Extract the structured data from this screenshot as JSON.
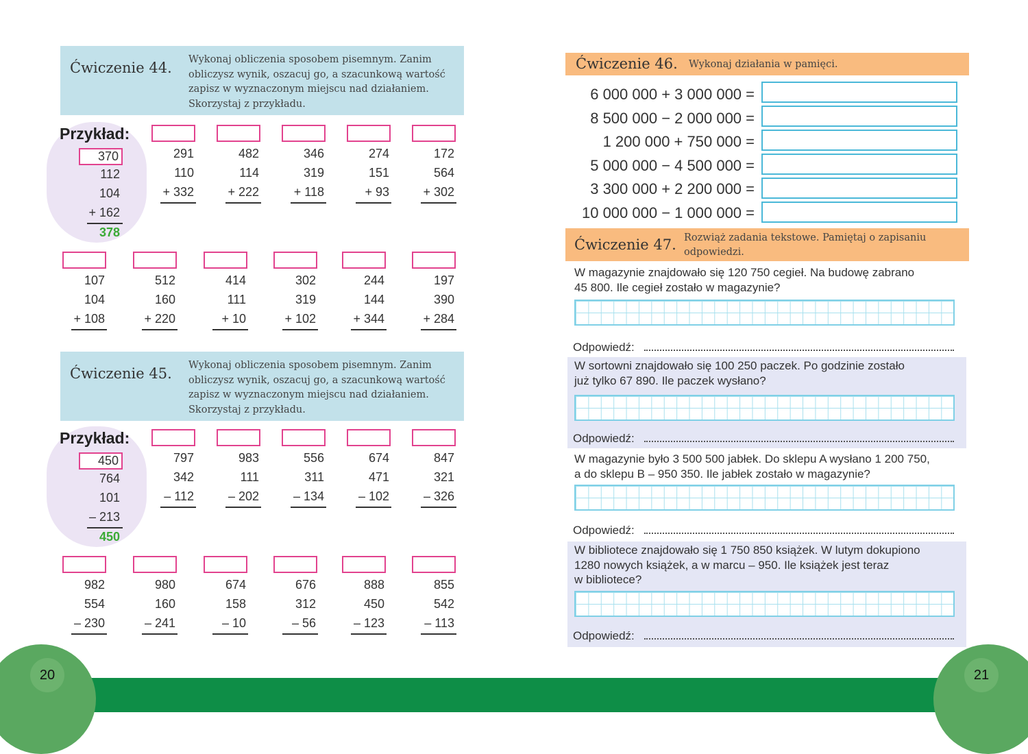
{
  "left_page": {
    "page_number": "20",
    "ex44": {
      "title": "Ćwiczenie 44.",
      "instruction": [
        "Wykonaj obliczenia sposobem pisemnym. Zanim",
        "obliczysz wynik, oszacuj go, a szacunkową wartość",
        "zapisz w wyznaczonym miejscu nad działaniem.",
        "Skorzystaj z przykładu."
      ],
      "example_label": "Przykład:",
      "example": {
        "estimate": "370",
        "rows": [
          "112",
          "104",
          "+ 162"
        ],
        "result": "378"
      },
      "row1": [
        [
          "291",
          "110",
          "+ 332"
        ],
        [
          "482",
          "114",
          "+ 222"
        ],
        [
          "346",
          "319",
          "+ 118"
        ],
        [
          "274",
          "151",
          "+ 93"
        ],
        [
          "172",
          "564",
          "+ 302"
        ]
      ],
      "row2": [
        [
          "107",
          "104",
          "+ 108"
        ],
        [
          "512",
          "160",
          "+ 220"
        ],
        [
          "414",
          "111",
          "+ 10"
        ],
        [
          "302",
          "319",
          "+ 102"
        ],
        [
          "244",
          "144",
          "+ 344"
        ],
        [
          "197",
          "390",
          "+ 284"
        ]
      ]
    },
    "ex45": {
      "title": "Ćwiczenie 45.",
      "instruction": [
        "Wykonaj obliczenia sposobem pisemnym. Zanim",
        "obliczysz wynik, oszacuj go, a szacunkową wartość",
        "zapisz w wyznaczonym miejscu nad działaniem.",
        "Skorzystaj z przykładu."
      ],
      "example_label": "Przykład:",
      "example": {
        "estimate": "450",
        "rows": [
          "764",
          "101",
          "– 213"
        ],
        "result": "450"
      },
      "row1": [
        [
          "797",
          "342",
          "– 112"
        ],
        [
          "983",
          "111",
          "– 202"
        ],
        [
          "556",
          "311",
          "– 134"
        ],
        [
          "674",
          "471",
          "– 102"
        ],
        [
          "847",
          "321",
          "– 326"
        ]
      ],
      "row2": [
        [
          "982",
          "554",
          "– 230"
        ],
        [
          "980",
          "160",
          "– 241"
        ],
        [
          "674",
          "158",
          "– 10"
        ],
        [
          "676",
          "312",
          "– 56"
        ],
        [
          "888",
          "450",
          "– 123"
        ],
        [
          "855",
          "542",
          "– 113"
        ]
      ]
    }
  },
  "right_page": {
    "page_number": "21",
    "ex46": {
      "title": "Ćwiczenie 46.",
      "instruction": "Wykonaj działania w pamięci.",
      "equations": [
        "6 000 000 + 3 000 000 =",
        "8 500 000 − 2 000 000 =",
        "1 200 000 + 750 000 =",
        "5 000 000 − 4 500 000 =",
        "3 300 000 + 2 200 000 =",
        "10 000 000 − 1 000 000 ="
      ]
    },
    "ex47": {
      "title": "Ćwiczenie 47.",
      "instruction": [
        "Rozwiąż zadania tekstowe. Pamiętaj o zapisaniu",
        "odpowiedzi."
      ],
      "answer_label": "Odpowiedź:",
      "problems": [
        {
          "lines": [
            "W magazynie znajdowało się 120 750 cegieł. Na budowę zabrano",
            "45 800. Ile cegieł zostało w magazynie?"
          ]
        },
        {
          "lines": [
            "W sortowni znajdowało się 100 250 paczek. Po godzinie zostało",
            " już tylko 67 890. Ile paczek wysłano?"
          ]
        },
        {
          "lines": [
            "W magazynie było 3 500 500 jabłek. Do sklepu A wysłano 1 200 750,",
            "a do sklepu B – 950 350. Ile jabłek zostało w magazynie?"
          ]
        },
        {
          "lines": [
            "W bibliotece znajdowało się 1 750 850 książek. W lutym dokupiono",
            "1280 nowych książek, a w marcu – 950. Ile książek jest teraz",
            "w bibliotece?"
          ]
        }
      ]
    }
  },
  "colors": {
    "exercise_header_blue": "#c2e1ea",
    "exercise_header_orange": "#f9bb7f",
    "estimate_box": "#e2428e",
    "result_green": "#3aaa35",
    "footer_green": "#0e8e47"
  }
}
